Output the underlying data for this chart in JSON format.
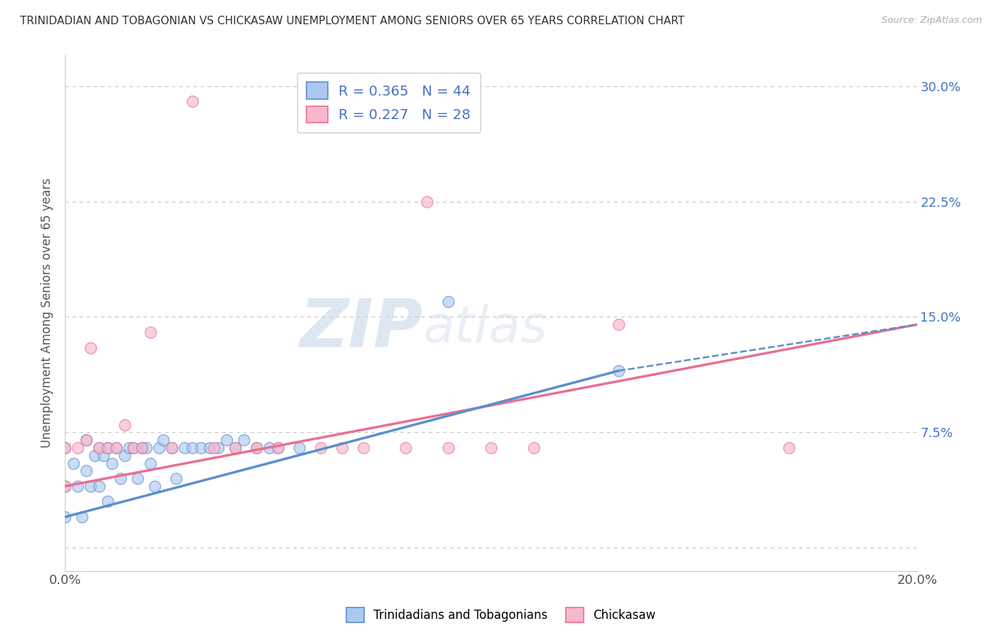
{
  "title": "TRINIDADIAN AND TOBAGONIAN VS CHICKASAW UNEMPLOYMENT AMONG SENIORS OVER 65 YEARS CORRELATION CHART",
  "source": "Source: ZipAtlas.com",
  "ylabel": "Unemployment Among Seniors over 65 years",
  "xlim": [
    0.0,
    0.2
  ],
  "ylim": [
    -0.015,
    0.32
  ],
  "yticks": [
    0.0,
    0.075,
    0.15,
    0.225,
    0.3
  ],
  "ytick_labels": [
    "",
    "7.5%",
    "15.0%",
    "22.5%",
    "30.0%"
  ],
  "xtick_labels": [
    "0.0%",
    "20.0%"
  ],
  "legend_label_blue": "R = 0.365   N = 44",
  "legend_label_pink": "R = 0.227   N = 28",
  "blue_scatter_x": [
    0.0,
    0.0,
    0.0,
    0.002,
    0.003,
    0.004,
    0.005,
    0.005,
    0.006,
    0.007,
    0.008,
    0.008,
    0.009,
    0.01,
    0.01,
    0.011,
    0.012,
    0.013,
    0.014,
    0.015,
    0.016,
    0.017,
    0.018,
    0.019,
    0.02,
    0.021,
    0.022,
    0.023,
    0.025,
    0.026,
    0.028,
    0.03,
    0.032,
    0.034,
    0.036,
    0.038,
    0.04,
    0.042,
    0.045,
    0.048,
    0.05,
    0.055,
    0.09,
    0.13
  ],
  "blue_scatter_y": [
    0.02,
    0.04,
    0.065,
    0.055,
    0.04,
    0.02,
    0.05,
    0.07,
    0.04,
    0.06,
    0.04,
    0.065,
    0.06,
    0.03,
    0.065,
    0.055,
    0.065,
    0.045,
    0.06,
    0.065,
    0.065,
    0.045,
    0.065,
    0.065,
    0.055,
    0.04,
    0.065,
    0.07,
    0.065,
    0.045,
    0.065,
    0.065,
    0.065,
    0.065,
    0.065,
    0.07,
    0.065,
    0.07,
    0.065,
    0.065,
    0.065,
    0.065,
    0.16,
    0.115
  ],
  "pink_scatter_x": [
    0.0,
    0.0,
    0.003,
    0.005,
    0.006,
    0.008,
    0.01,
    0.012,
    0.014,
    0.016,
    0.018,
    0.02,
    0.025,
    0.03,
    0.035,
    0.04,
    0.045,
    0.05,
    0.06,
    0.065,
    0.07,
    0.08,
    0.085,
    0.09,
    0.1,
    0.11,
    0.13,
    0.17
  ],
  "pink_scatter_y": [
    0.04,
    0.065,
    0.065,
    0.07,
    0.13,
    0.065,
    0.065,
    0.065,
    0.08,
    0.065,
    0.065,
    0.14,
    0.065,
    0.29,
    0.065,
    0.065,
    0.065,
    0.065,
    0.065,
    0.065,
    0.065,
    0.065,
    0.225,
    0.065,
    0.065,
    0.065,
    0.145,
    0.065
  ],
  "blue_solid_line_x": [
    0.0,
    0.13
  ],
  "blue_solid_line_y": [
    0.02,
    0.115
  ],
  "blue_dashed_line_x": [
    0.13,
    0.2
  ],
  "blue_dashed_line_y": [
    0.115,
    0.145
  ],
  "pink_solid_line_x": [
    0.0,
    0.2
  ],
  "pink_solid_line_y": [
    0.04,
    0.145
  ],
  "blue_color": "#5b8fcc",
  "pink_color": "#e87090",
  "blue_fill": "#adc8f0",
  "pink_fill": "#f8b8cb",
  "watermark_zip": "ZIP",
  "watermark_atlas": "atlas",
  "background_color": "#ffffff",
  "grid_color": "#c8c8c8"
}
